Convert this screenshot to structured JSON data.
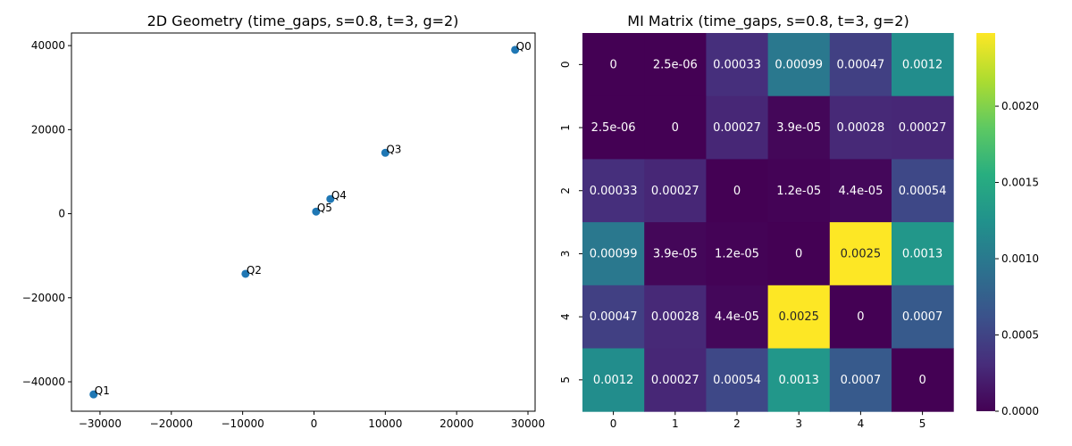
{
  "chart_data": [
    {
      "type": "scatter",
      "title": "2D Geometry (time_gaps, s=0.8, t=3, g=2)",
      "xlim": [
        -34000,
        31000
      ],
      "ylim": [
        -47000,
        43000
      ],
      "xticks": [
        -30000,
        -20000,
        -10000,
        0,
        10000,
        20000,
        30000
      ],
      "yticks": [
        -40000,
        -20000,
        0,
        20000,
        40000
      ],
      "xtick_labels": [
        "−30000",
        "−20000",
        "−10000",
        "0",
        "10000",
        "20000",
        "30000"
      ],
      "ytick_labels": [
        "−40000",
        "−20000",
        "0",
        "20000",
        "40000"
      ],
      "marker_color": "#1f77b4",
      "points": [
        {
          "label": "Q0",
          "x": 28200,
          "y": 39000
        },
        {
          "label": "Q1",
          "x": -30900,
          "y": -43000
        },
        {
          "label": "Q2",
          "x": -9600,
          "y": -14300
        },
        {
          "label": "Q3",
          "x": 10000,
          "y": 14500
        },
        {
          "label": "Q4",
          "x": 2300,
          "y": 3500
        },
        {
          "label": "Q5",
          "x": 300,
          "y": 500
        }
      ]
    },
    {
      "type": "heatmap",
      "title": "MI Matrix (time_gaps, s=0.8, t=3, g=2)",
      "colormap": "viridis",
      "row_labels": [
        "0",
        "1",
        "2",
        "3",
        "4",
        "5"
      ],
      "col_labels": [
        "0",
        "1",
        "2",
        "3",
        "4",
        "5"
      ],
      "values": [
        [
          0,
          2.5e-06,
          0.00033,
          0.00099,
          0.00047,
          0.0012
        ],
        [
          2.5e-06,
          0,
          0.00027,
          3.9e-05,
          0.00028,
          0.00027
        ],
        [
          0.00033,
          0.00027,
          0,
          1.2e-05,
          4.4e-05,
          0.00054
        ],
        [
          0.00099,
          3.9e-05,
          1.2e-05,
          0,
          0.0025,
          0.0013
        ],
        [
          0.00047,
          0.00028,
          4.4e-05,
          0.0025,
          0,
          0.0007
        ],
        [
          0.0012,
          0.00027,
          0.00054,
          0.0013,
          0.0007,
          0
        ]
      ],
      "annotations": [
        [
          "0",
          "2.5e-06",
          "0.00033",
          "0.00099",
          "0.00047",
          "0.0012"
        ],
        [
          "2.5e-06",
          "0",
          "0.00027",
          "3.9e-05",
          "0.00028",
          "0.00027"
        ],
        [
          "0.00033",
          "0.00027",
          "0",
          "1.2e-05",
          "4.4e-05",
          "0.00054"
        ],
        [
          "0.00099",
          "3.9e-05",
          "1.2e-05",
          "0",
          "0.0025",
          "0.0013"
        ],
        [
          "0.00047",
          "0.00028",
          "4.4e-05",
          "0.0025",
          "0",
          "0.0007"
        ],
        [
          "0.0012",
          "0.00027",
          "0.00054",
          "0.0013",
          "0.0007",
          "0"
        ]
      ],
      "vmin": 0,
      "vmax": 0.00248,
      "colorbar_ticks": [
        0,
        0.0005,
        0.001,
        0.0015,
        0.002
      ],
      "colorbar_tick_labels": [
        "0.0000",
        "0.0005",
        "0.0010",
        "0.0015",
        "0.0020"
      ]
    }
  ]
}
